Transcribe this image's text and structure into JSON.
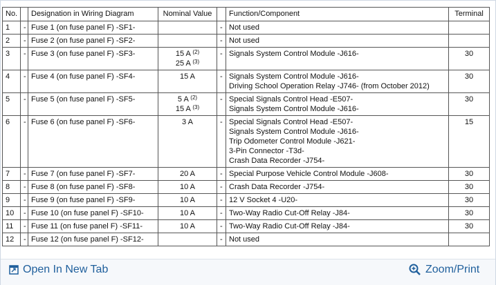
{
  "table": {
    "header": [
      "No.",
      null,
      "Designation in Wiring Diagram",
      "Nominal Value",
      null,
      "Function/Component",
      "Terminal"
    ],
    "separator": "-",
    "rows": [
      {
        "no": 1,
        "designation": "Fuse 1 (on fuse panel F) -SF1-",
        "nominal": [],
        "function": [
          "Not used"
        ],
        "terminal": null
      },
      {
        "no": 2,
        "designation": "Fuse 2 (on fuse panel F) -SF2-",
        "nominal": [],
        "function": [
          "Not used"
        ],
        "terminal": null
      },
      {
        "no": 3,
        "designation": "Fuse 3 (on fuse panel F) -SF3-",
        "nominal": [
          {
            "value": "15 A",
            "note": "(2)"
          },
          {
            "value": "25 A",
            "note": "(3)"
          }
        ],
        "function": [
          "Signals System Control Module -J616-"
        ],
        "terminal": 30
      },
      {
        "no": 4,
        "designation": "Fuse 4 (on fuse panel F) -SF4-",
        "nominal": [
          {
            "value": "15 A",
            "note": null
          }
        ],
        "function": [
          "Signals System Control Module -J616-",
          "Driving School Operation Relay -J746- (from October 2012)"
        ],
        "terminal": 30
      },
      {
        "no": 5,
        "designation": "Fuse 5 (on fuse panel F) -SF5-",
        "nominal": [
          {
            "value": "5 A",
            "note": "(2)"
          },
          {
            "value": "15 A",
            "note": "(3)"
          }
        ],
        "function": [
          "Special Signals Control Head -E507-",
          "Signals System Control Module -J616-"
        ],
        "terminal": 30
      },
      {
        "no": 6,
        "designation": "Fuse 6 (on fuse panel F) -SF6-",
        "nominal": [
          {
            "value": "3 A",
            "note": null
          }
        ],
        "function": [
          "Special Signals Control Head -E507-",
          "Signals System Control Module -J616-",
          "Trip Odometer Control Module -J621-",
          "3-Pin Connector -T3d-",
          "Crash Data Recorder -J754-"
        ],
        "terminal": 15
      },
      {
        "no": 7,
        "designation": "Fuse 7 (on fuse panel F) -SF7-",
        "nominal": [
          {
            "value": "20 A",
            "note": null
          }
        ],
        "function": [
          "Special Purpose Vehicle Control Module -J608-"
        ],
        "terminal": 30
      },
      {
        "no": 8,
        "designation": "Fuse 8 (on fuse panel F) -SF8-",
        "nominal": [
          {
            "value": "10 A",
            "note": null
          }
        ],
        "function": [
          "Crash Data Recorder -J754-"
        ],
        "terminal": 30
      },
      {
        "no": 9,
        "designation": "Fuse 9 (on fuse panel F) -SF9-",
        "nominal": [
          {
            "value": "10 A",
            "note": null
          }
        ],
        "function": [
          "12 V Socket 4 -U20-"
        ],
        "terminal": 30
      },
      {
        "no": 10,
        "designation": "Fuse 10 (on fuse panel F) -SF10-",
        "nominal": [
          {
            "value": "10 A",
            "note": null
          }
        ],
        "function": [
          "Two-Way Radio Cut-Off Relay -J84-"
        ],
        "terminal": 30
      },
      {
        "no": 11,
        "designation": "Fuse 11 (on fuse panel F) -SF11-",
        "nominal": [
          {
            "value": "10 A",
            "note": null
          }
        ],
        "function": [
          "Two-Way Radio Cut-Off Relay -J84-"
        ],
        "terminal": 30
      },
      {
        "no": 12,
        "designation": "Fuse 12 (on fuse panel F) -SF12-",
        "nominal": [],
        "function": [
          "Not used"
        ],
        "terminal": null
      }
    ]
  },
  "footer": {
    "open_link": "Open In New Tab",
    "zoom_link": "Zoom/Print"
  }
}
